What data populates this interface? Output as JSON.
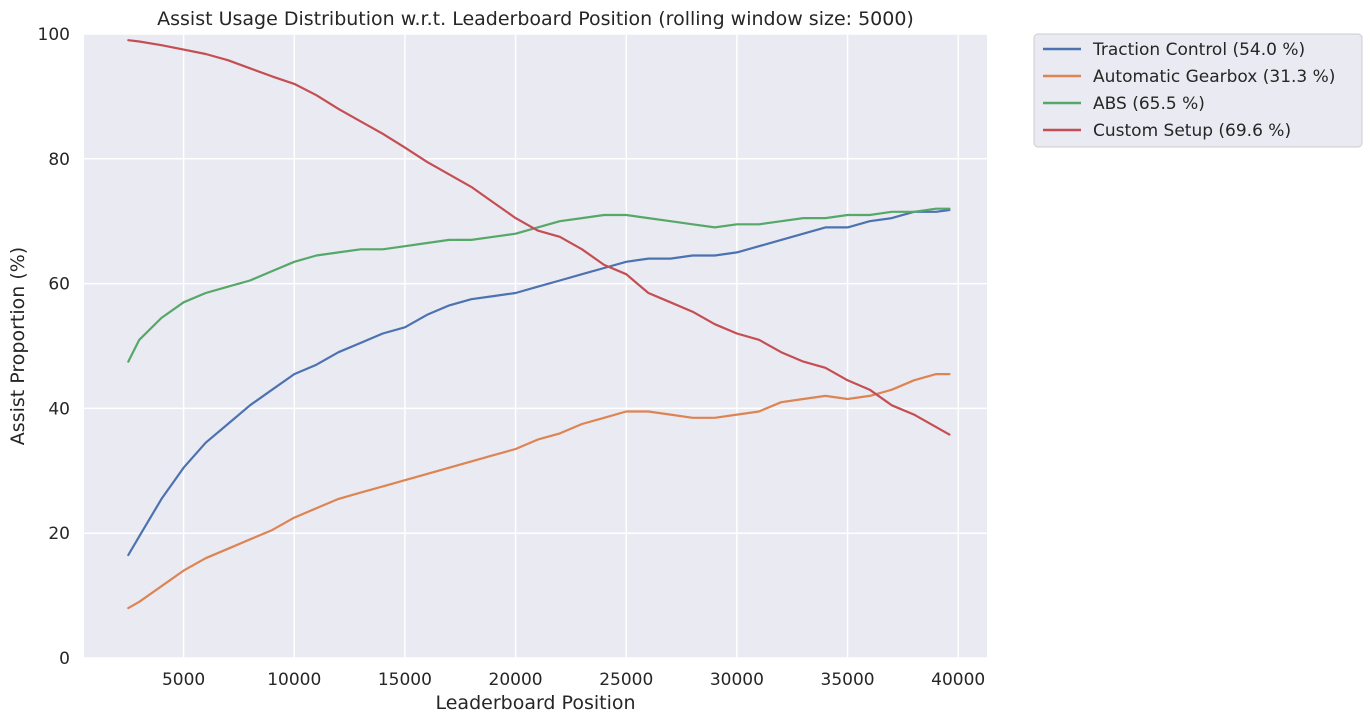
{
  "chart_data": {
    "type": "line",
    "title": "Assist Usage Distribution w.r.t. Leaderboard Position (rolling window size: 5000)",
    "xlabel": "Leaderboard Position",
    "ylabel": "Assist Proportion (%)",
    "xlim": [
      500,
      41300
    ],
    "ylim": [
      0,
      100
    ],
    "xticks": [
      5000,
      10000,
      15000,
      20000,
      25000,
      30000,
      35000,
      40000
    ],
    "yticks": [
      0,
      20,
      40,
      60,
      80,
      100
    ],
    "grid": true,
    "background": "#eaeaf2",
    "legend_placement": "outside-top-right",
    "x": [
      2500,
      3000,
      4000,
      5000,
      6000,
      7000,
      8000,
      9000,
      10000,
      11000,
      12000,
      13000,
      14000,
      15000,
      16000,
      17000,
      18000,
      19000,
      20000,
      21000,
      22000,
      23000,
      24000,
      25000,
      26000,
      27000,
      28000,
      29000,
      30000,
      31000,
      32000,
      33000,
      34000,
      35000,
      36000,
      37000,
      38000,
      39000,
      39600
    ],
    "series": [
      {
        "name": "Traction Control (54.0 %)",
        "color": "#4c72b0",
        "values": [
          16.5,
          19.5,
          25.5,
          30.5,
          34.5,
          37.5,
          40.5,
          43.0,
          45.5,
          47.0,
          49.0,
          50.5,
          52.0,
          53.0,
          55.0,
          56.5,
          57.5,
          58.0,
          58.5,
          59.5,
          60.5,
          61.5,
          62.5,
          63.5,
          64.0,
          64.0,
          64.5,
          64.5,
          65.0,
          66.0,
          67.0,
          68.0,
          69.0,
          69.0,
          70.0,
          70.5,
          71.5,
          71.5,
          71.8
        ]
      },
      {
        "name": "Automatic Gearbox (31.3 %)",
        "color": "#dd8452",
        "values": [
          8.0,
          9.0,
          11.5,
          14.0,
          16.0,
          17.5,
          19.0,
          20.5,
          22.5,
          24.0,
          25.5,
          26.5,
          27.5,
          28.5,
          29.5,
          30.5,
          31.5,
          32.5,
          33.5,
          35.0,
          36.0,
          37.5,
          38.5,
          39.5,
          39.5,
          39.0,
          38.5,
          38.5,
          39.0,
          39.5,
          41.0,
          41.5,
          42.0,
          41.5,
          42.0,
          43.0,
          44.5,
          45.5,
          45.5
        ]
      },
      {
        "name": "ABS (65.5 %)",
        "color": "#55a868",
        "values": [
          47.5,
          51.0,
          54.5,
          57.0,
          58.5,
          59.5,
          60.5,
          62.0,
          63.5,
          64.5,
          65.0,
          65.5,
          65.5,
          66.0,
          66.5,
          67.0,
          67.0,
          67.5,
          68.0,
          69.0,
          70.0,
          70.5,
          71.0,
          71.0,
          70.5,
          70.0,
          69.5,
          69.0,
          69.5,
          69.5,
          70.0,
          70.5,
          70.5,
          71.0,
          71.0,
          71.5,
          71.5,
          72.0,
          72.0
        ]
      },
      {
        "name": "Custom Setup (69.6 %)",
        "color": "#c44e52",
        "values": [
          99.0,
          98.8,
          98.2,
          97.5,
          96.8,
          95.8,
          94.5,
          93.2,
          92.0,
          90.2,
          88.0,
          86.0,
          84.0,
          81.8,
          79.5,
          77.5,
          75.5,
          73.0,
          70.5,
          68.5,
          67.5,
          65.5,
          63.0,
          61.5,
          58.5,
          57.0,
          55.5,
          53.5,
          52.0,
          51.0,
          49.0,
          47.5,
          46.5,
          44.5,
          43.0,
          40.5,
          39.0,
          37.0,
          35.8
        ]
      }
    ]
  }
}
